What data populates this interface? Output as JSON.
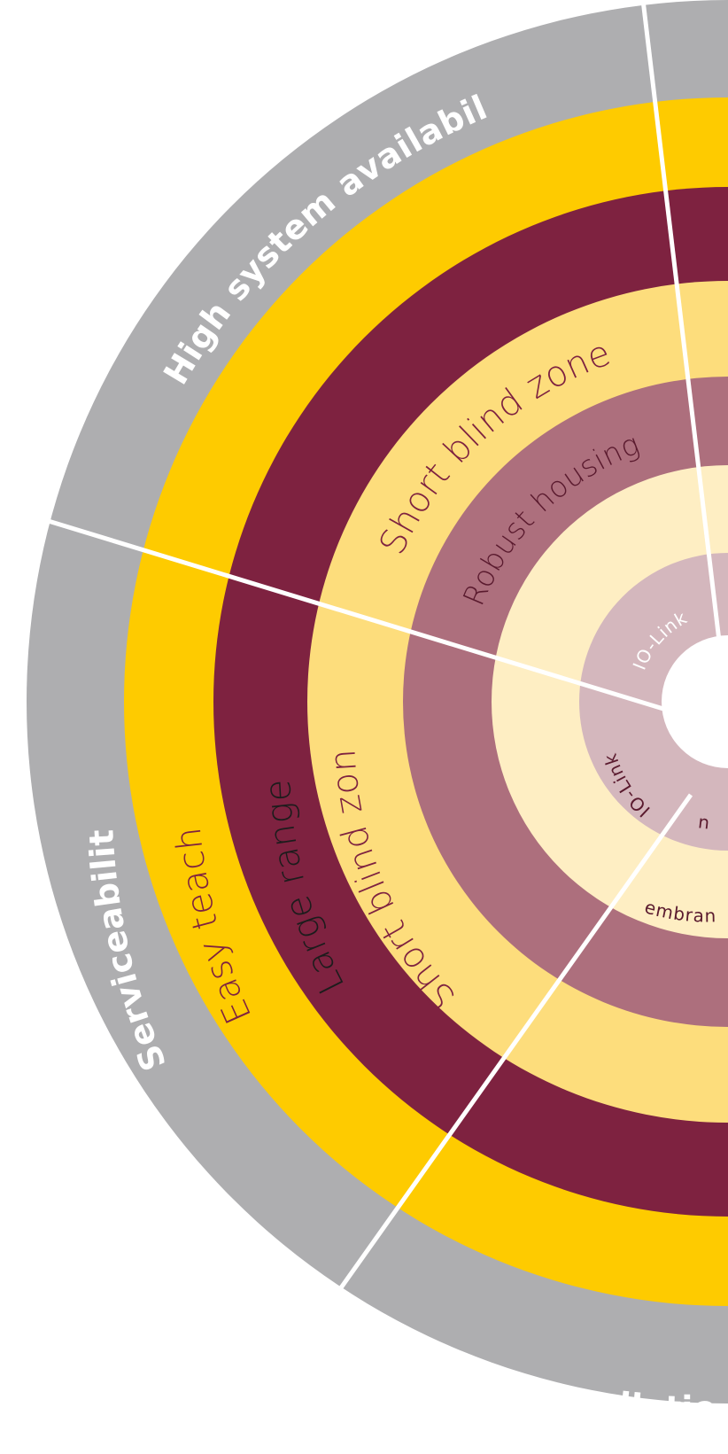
{
  "colors": {
    "ring1_gray": "#aeaeb0",
    "ring2_yellow": "#fecb00",
    "ring3_maroon": "#7e2240",
    "ring4_light_yellow": "#fddd7c",
    "ring5_mauve": "#ad6f7d",
    "ring6_cream": "#feeec3",
    "ring7_pink": "#d4b7bd",
    "center": "#ffffff",
    "divider": "#ffffff"
  },
  "segments": {
    "top": {
      "category": "High system availability",
      "ring3": "",
      "ring4": "Short blind zone",
      "ring5": "Robust housing",
      "ring7": "IO-Link"
    },
    "left": {
      "category": "Serviceability",
      "ring2": "Easy teach",
      "ring3": "Large range",
      "ring4": "Short blind zone",
      "ring7": "IO-Link"
    },
    "bottom": {
      "category": "allation",
      "ring6": "embrane",
      "ring7": "nk"
    }
  }
}
